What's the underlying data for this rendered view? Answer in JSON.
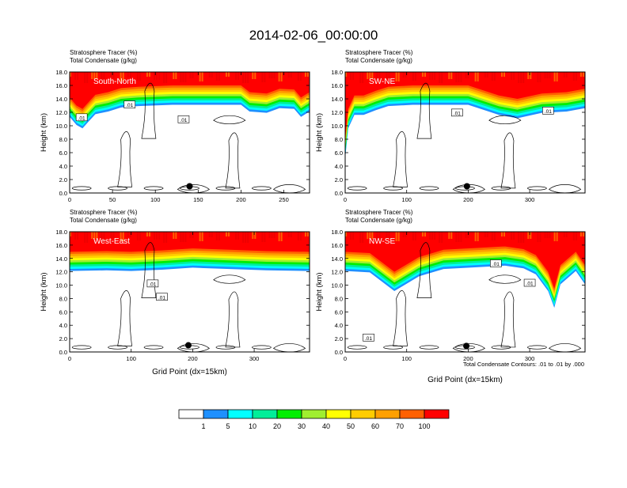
{
  "page": {
    "title": "2014-02-06_00:00:00",
    "contour_note": "Total Condensate Contours: .01 to .01 by .000"
  },
  "colorbar": {
    "colors": [
      "#ffffff",
      "#1e90ff",
      "#00ffff",
      "#00ee99",
      "#00ee00",
      "#a0ee30",
      "#ffff00",
      "#ffcc00",
      "#ffa000",
      "#ff6000",
      "#ff0000"
    ],
    "labels": [
      "1",
      "5",
      "10",
      "20",
      "30",
      "40",
      "50",
      "60",
      "70",
      "100"
    ]
  },
  "chart_data": [
    {
      "type": "heatmap",
      "panel_label": "South-North",
      "subtitle_line1": "Stratosphere Tracer   (%)",
      "subtitle_line2": "Total Condensate   (g/kg)",
      "ylabel": "Height (km)",
      "xlabel": "",
      "xlim": [
        0,
        280
      ],
      "ylim": [
        0,
        18
      ],
      "xticks": [
        0,
        50,
        100,
        150,
        200,
        250
      ],
      "yticks": [
        "0.0",
        "2.0",
        "4.0",
        "6.0",
        "8.0",
        "10.0",
        "12.0",
        "14.0",
        "16.0",
        "18.0"
      ],
      "tropopause_km": [
        [
          0,
          14.2
        ],
        [
          8,
          13.0
        ],
        [
          15,
          12.5
        ],
        [
          22,
          13.5
        ],
        [
          30,
          14.6
        ],
        [
          45,
          15.0
        ],
        [
          60,
          15.6
        ],
        [
          80,
          15.8
        ],
        [
          120,
          16.0
        ],
        [
          160,
          16.0
        ],
        [
          200,
          16.0
        ],
        [
          210,
          15.0
        ],
        [
          230,
          14.8
        ],
        [
          245,
          15.5
        ],
        [
          262,
          15.4
        ],
        [
          270,
          14.2
        ],
        [
          280,
          15.0
        ]
      ],
      "contour_labels": [
        {
          "text": ".01",
          "x": 14,
          "y": 11.2
        },
        {
          "text": ".01",
          "x": 70,
          "y": 13.1
        },
        {
          "text": ".01",
          "x": 133,
          "y": 10.9
        }
      ],
      "marker": {
        "x": 140,
        "y": 1.0
      }
    },
    {
      "type": "heatmap",
      "panel_label": "SW-NE",
      "subtitle_line1": "Stratosphere Tracer   (%)",
      "subtitle_line2": "Total Condensate   (g/kg)",
      "ylabel": "Height (km)",
      "xlabel": "",
      "xlim": [
        0,
        390
      ],
      "ylim": [
        0,
        18
      ],
      "xticks": [
        0,
        100,
        200,
        300
      ],
      "yticks": [
        "0.0",
        "2.0",
        "4.0",
        "6.0",
        "8.0",
        "10.0",
        "12.0",
        "14.0",
        "16.0",
        "18.0"
      ],
      "tropopause_km": [
        [
          0,
          8.0
        ],
        [
          5,
          12.5
        ],
        [
          15,
          14.5
        ],
        [
          30,
          14.5
        ],
        [
          50,
          15.2
        ],
        [
          70,
          15.8
        ],
        [
          110,
          16.0
        ],
        [
          200,
          16.0
        ],
        [
          250,
          14.5
        ],
        [
          280,
          14.0
        ],
        [
          320,
          14.8
        ],
        [
          360,
          15.0
        ],
        [
          390,
          15.5
        ]
      ],
      "contour_labels": [
        {
          "text": ".01",
          "x": 182,
          "y": 11.9
        },
        {
          "text": ".01",
          "x": 330,
          "y": 12.2
        }
      ],
      "marker": {
        "x": 198,
        "y": 1.0
      }
    },
    {
      "type": "heatmap",
      "panel_label": "West-East",
      "subtitle_line1": "Stratosphere Tracer   (%)",
      "subtitle_line2": "Total Condensate   (g/kg)",
      "ylabel": "Height (km)",
      "xlabel": "Grid Point (dx=15km)",
      "xlim": [
        0,
        390
      ],
      "ylim": [
        0,
        18
      ],
      "xticks": [
        0,
        100,
        200,
        300
      ],
      "yticks": [
        "0.0",
        "2.0",
        "4.0",
        "6.0",
        "8.0",
        "10.0",
        "12.0",
        "14.0",
        "16.0",
        "18.0"
      ],
      "tropopause_km": [
        [
          0,
          15.0
        ],
        [
          60,
          15.1
        ],
        [
          100,
          15.0
        ],
        [
          150,
          15.2
        ],
        [
          200,
          15.5
        ],
        [
          260,
          15.3
        ],
        [
          320,
          15.1
        ],
        [
          390,
          15.0
        ]
      ],
      "contour_labels": [
        {
          "text": ".01",
          "x": 135,
          "y": 10.2
        },
        {
          "text": ".01",
          "x": 150,
          "y": 8.2
        }
      ],
      "marker": {
        "x": 193,
        "y": 1.0
      }
    },
    {
      "type": "heatmap",
      "panel_label": "NW-SE",
      "subtitle_line1": "Stratosphere Tracer   (%)",
      "subtitle_line2": "Total Condensate   (g/kg)",
      "ylabel": "Height (km)",
      "xlabel": "Grid Point (dx=15km)",
      "xlim": [
        0,
        390
      ],
      "ylim": [
        0,
        18
      ],
      "xticks": [
        0,
        100,
        200,
        300
      ],
      "yticks": [
        "0.0",
        "2.0",
        "4.0",
        "6.0",
        "8.0",
        "10.0",
        "12.0",
        "14.0",
        "16.0",
        "18.0"
      ],
      "tropopause_km": [
        [
          0,
          15.0
        ],
        [
          40,
          14.8
        ],
        [
          80,
          12.0
        ],
        [
          120,
          14.2
        ],
        [
          160,
          15.3
        ],
        [
          220,
          15.6
        ],
        [
          260,
          15.8
        ],
        [
          290,
          15.4
        ],
        [
          310,
          14.5
        ],
        [
          330,
          12.0
        ],
        [
          340,
          9.5
        ],
        [
          350,
          13.0
        ],
        [
          375,
          15.0
        ],
        [
          390,
          13.0
        ]
      ],
      "contour_labels": [
        {
          "text": ".01",
          "x": 245,
          "y": 13.2
        },
        {
          "text": ".01",
          "x": 300,
          "y": 10.3
        },
        {
          "text": ".01",
          "x": 38,
          "y": 2.1
        }
      ],
      "marker": {
        "x": 197,
        "y": 0.9
      }
    }
  ]
}
